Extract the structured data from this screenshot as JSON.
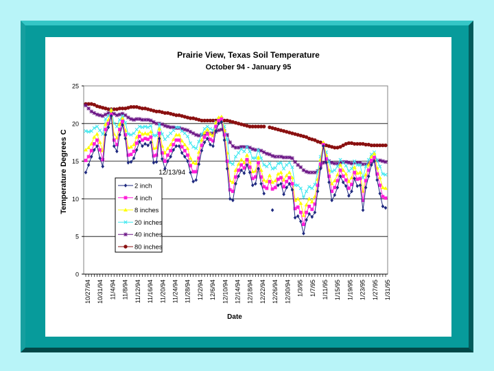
{
  "slide": {
    "frame_color": "#079b9b",
    "background": "#b8f4f8"
  },
  "chart_data": {
    "type": "line",
    "title": "Prairie View, Texas Soil Temperature",
    "subtitle": "October 94 - January 95",
    "xlabel": "Date",
    "ylabel": "Temperature Degrees C",
    "ylim": [
      0,
      25
    ],
    "yticks": [
      0,
      5,
      10,
      15,
      20,
      25
    ],
    "grid": "horizontal",
    "legend_position": "lower-left",
    "annotation": {
      "text": "12/13/94",
      "x_index": 26,
      "y": 13.6
    },
    "x_tick_labels": [
      "10/27/94",
      "10/31/94",
      "11/4/94",
      "11/8/94",
      "11/12/94",
      "11/16/94",
      "11/20/94",
      "11/24/94",
      "11/28/94",
      "12/2/94",
      "12/6/94",
      "12/10/94",
      "12/14/94",
      "12/18/94",
      "12/22/94",
      "12/26/94",
      "12/30/94",
      "1/3/95",
      "1/7/95",
      "1/11/95",
      "1/15/95",
      "1/19/95",
      "1/23/95",
      "1/27/95",
      "1/31/95"
    ],
    "series": [
      {
        "name": "2 inch",
        "color": "#1f2a80",
        "marker": "diamond",
        "values": [
          13.5,
          14.5,
          15.6,
          16.5,
          17.0,
          15.4,
          14.3,
          18.5,
          19.5,
          21.0,
          17.0,
          16.3,
          18.5,
          19.8,
          18.0,
          14.8,
          14.9,
          15.4,
          16.5,
          17.6,
          17.0,
          17.3,
          17.1,
          17.5,
          14.8,
          14.9,
          18.0,
          15.3,
          14.0,
          15.0,
          15.6,
          16.5,
          17.0,
          17.0,
          16.1,
          15.6,
          15.0,
          13.5,
          12.3,
          12.5,
          14.6,
          16.4,
          17.5,
          18.0,
          17.2,
          17.0,
          19.0,
          20.0,
          20.2,
          17.8,
          14.0,
          10.0,
          9.8,
          12.0,
          13.0,
          13.8,
          13.4,
          14.5,
          13.5,
          11.8,
          12.0,
          14.0,
          12.0,
          10.7,
          null,
          null,
          8.5,
          null,
          11.8,
          12.0,
          10.6,
          11.5,
          12.0,
          11.2,
          7.5,
          7.7,
          7.0,
          5.4,
          7.2,
          8.0,
          7.6,
          8.2,
          11.0,
          14.0,
          17.0,
          14.8,
          12.2,
          9.8,
          10.5,
          11.5,
          13.0,
          12.2,
          11.7,
          10.4,
          11.0,
          12.7,
          11.7,
          11.8,
          8.5,
          11.5,
          13.0,
          14.5,
          15.0,
          12.5,
          10.7,
          9.0,
          8.8
        ]
      },
      {
        "name": "4 inch",
        "color": "#ff1fd8",
        "marker": "square",
        "values": [
          15.1,
          15.6,
          16.4,
          17.3,
          17.8,
          16.5,
          15.2,
          19.2,
          20.0,
          21.2,
          17.8,
          17.2,
          19.2,
          20.3,
          18.5,
          15.8,
          15.9,
          16.3,
          17.4,
          18.3,
          17.8,
          18.0,
          17.9,
          18.2,
          15.7,
          15.8,
          18.7,
          16.1,
          15.0,
          15.8,
          16.4,
          17.2,
          17.8,
          17.8,
          16.9,
          16.4,
          15.8,
          14.4,
          13.6,
          13.6,
          15.4,
          17.1,
          18.2,
          18.6,
          17.9,
          17.7,
          19.6,
          20.4,
          20.6,
          18.5,
          15.0,
          11.2,
          11.0,
          12.9,
          13.8,
          14.5,
          14.1,
          15.2,
          14.2,
          12.7,
          12.9,
          14.8,
          12.9,
          11.6,
          11.4,
          12.3,
          11.3,
          11.5,
          12.6,
          12.8,
          11.6,
          12.3,
          12.8,
          12.0,
          8.7,
          8.9,
          8.2,
          6.6,
          8.2,
          9.0,
          8.6,
          9.3,
          11.8,
          14.6,
          17.2,
          15.3,
          13.0,
          11.0,
          11.5,
          12.4,
          13.8,
          13.0,
          12.5,
          11.4,
          11.9,
          13.5,
          12.6,
          12.7,
          9.8,
          12.4,
          13.8,
          15.1,
          15.5,
          13.3,
          11.8,
          10.3,
          10.1
        ]
      },
      {
        "name": "8 inches",
        "color": "#ffff00",
        "marker": "triangle",
        "values": [
          16.5,
          16.8,
          17.3,
          18.2,
          18.6,
          17.5,
          16.4,
          19.9,
          20.5,
          21.8,
          18.6,
          18.1,
          19.9,
          20.7,
          19.1,
          16.8,
          16.9,
          17.2,
          18.2,
          18.9,
          18.6,
          18.7,
          18.6,
          18.9,
          16.7,
          16.8,
          19.3,
          17.0,
          16.1,
          16.7,
          17.2,
          17.9,
          18.5,
          18.5,
          17.7,
          17.2,
          16.7,
          15.4,
          14.8,
          14.7,
          16.2,
          17.8,
          18.8,
          19.2,
          18.6,
          18.4,
          20.1,
          20.8,
          20.9,
          19.1,
          16.1,
          12.4,
          12.2,
          13.8,
          14.6,
          15.2,
          14.8,
          15.8,
          14.9,
          13.6,
          13.7,
          15.5,
          13.8,
          12.5,
          12.3,
          13.1,
          12.2,
          12.4,
          13.3,
          13.5,
          12.5,
          13.1,
          13.5,
          12.8,
          9.8,
          10.0,
          9.4,
          7.8,
          9.2,
          10.0,
          9.6,
          10.3,
          12.6,
          15.2,
          17.5,
          15.8,
          13.8,
          12.0,
          12.4,
          13.2,
          14.5,
          13.8,
          13.3,
          12.3,
          12.8,
          14.2,
          13.4,
          13.5,
          11.0,
          13.2,
          14.5,
          15.6,
          16.0,
          14.1,
          12.8,
          11.5,
          11.4
        ]
      },
      {
        "name": "20 inches",
        "color": "#3fe8f0",
        "marker": "x",
        "values": [
          19.0,
          18.9,
          19.0,
          19.4,
          19.6,
          19.1,
          18.6,
          20.6,
          21.0,
          21.8,
          20.0,
          19.6,
          20.5,
          21.0,
          20.1,
          18.6,
          18.5,
          18.7,
          19.2,
          19.6,
          19.5,
          19.6,
          19.5,
          19.7,
          18.4,
          18.4,
          19.9,
          18.6,
          17.9,
          18.3,
          18.7,
          19.1,
          19.5,
          19.5,
          19.0,
          18.7,
          18.3,
          17.4,
          16.9,
          16.7,
          17.6,
          18.6,
          19.3,
          19.6,
          19.3,
          19.1,
          20.2,
          20.6,
          20.7,
          19.6,
          17.9,
          14.8,
          14.6,
          15.6,
          16.1,
          16.6,
          16.3,
          16.9,
          16.3,
          15.4,
          15.4,
          16.5,
          15.4,
          14.5,
          14.3,
          14.7,
          14.0,
          14.1,
          14.7,
          14.8,
          14.0,
          14.5,
          14.8,
          14.2,
          11.8,
          11.8,
          11.4,
          10.2,
          11.0,
          11.6,
          11.4,
          11.9,
          13.6,
          15.6,
          17.2,
          16.2,
          14.9,
          13.6,
          13.8,
          14.3,
          15.2,
          14.8,
          14.4,
          13.7,
          14.0,
          15.0,
          14.5,
          14.5,
          12.8,
          14.3,
          15.2,
          15.9,
          16.2,
          15.1,
          14.3,
          13.3,
          13.2
        ]
      },
      {
        "name": "40 inches",
        "color": "#6b1585",
        "marker": "star",
        "values": [
          22.4,
          22.0,
          21.6,
          21.4,
          21.2,
          21.1,
          21.0,
          21.2,
          21.4,
          21.5,
          21.3,
          21.1,
          21.2,
          21.3,
          21.1,
          20.8,
          20.6,
          20.5,
          20.6,
          20.6,
          20.5,
          20.5,
          20.5,
          20.4,
          20.2,
          20.0,
          20.0,
          19.9,
          19.7,
          19.6,
          19.5,
          19.5,
          19.4,
          19.4,
          19.3,
          19.2,
          19.1,
          18.9,
          18.7,
          18.5,
          18.4,
          18.5,
          18.6,
          18.7,
          18.7,
          18.7,
          18.9,
          19.1,
          19.2,
          19.0,
          18.5,
          17.5,
          17.0,
          16.8,
          16.8,
          16.9,
          16.9,
          16.9,
          16.8,
          16.6,
          16.5,
          16.5,
          16.4,
          16.2,
          16.0,
          15.9,
          15.7,
          15.6,
          15.6,
          15.6,
          15.5,
          15.5,
          15.5,
          15.4,
          14.9,
          14.5,
          14.2,
          13.8,
          13.6,
          13.5,
          13.5,
          13.5,
          13.7,
          14.2,
          14.8,
          15.0,
          15.0,
          14.8,
          14.7,
          14.7,
          14.8,
          14.9,
          14.9,
          14.8,
          14.7,
          14.8,
          14.8,
          14.8,
          14.6,
          14.6,
          14.7,
          14.9,
          15.1,
          15.1,
          15.1,
          15.0,
          14.9
        ]
      },
      {
        "name": "80 inches",
        "color": "#8a1010",
        "marker": "circle",
        "values": [
          22.6,
          22.6,
          22.6,
          22.5,
          22.3,
          22.2,
          22.1,
          22.0,
          21.9,
          21.9,
          21.9,
          21.9,
          22.0,
          22.0,
          22.0,
          22.1,
          22.2,
          22.2,
          22.2,
          22.1,
          22.0,
          22.0,
          21.9,
          21.8,
          21.7,
          21.6,
          21.6,
          21.5,
          21.4,
          21.4,
          21.3,
          21.2,
          21.1,
          21.1,
          21.0,
          20.9,
          20.8,
          20.7,
          20.7,
          20.6,
          20.5,
          20.4,
          20.4,
          20.4,
          20.4,
          20.4,
          20.4,
          20.4,
          20.4,
          20.4,
          20.4,
          20.3,
          20.2,
          20.1,
          20.0,
          19.9,
          19.8,
          19.7,
          19.6,
          19.6,
          19.6,
          19.6,
          19.6,
          19.6,
          null,
          19.5,
          19.4,
          19.3,
          19.2,
          19.1,
          19.0,
          18.9,
          18.8,
          18.7,
          18.6,
          18.5,
          18.4,
          18.3,
          18.2,
          18.0,
          17.9,
          17.8,
          17.6,
          17.5,
          17.3,
          17.1,
          17.0,
          16.9,
          16.8,
          16.8,
          16.9,
          17.1,
          17.3,
          17.4,
          17.4,
          17.3,
          17.3,
          17.3,
          17.3,
          17.2,
          17.2,
          17.1,
          17.1,
          17.1,
          17.1,
          17.1,
          17.1
        ]
      }
    ]
  }
}
